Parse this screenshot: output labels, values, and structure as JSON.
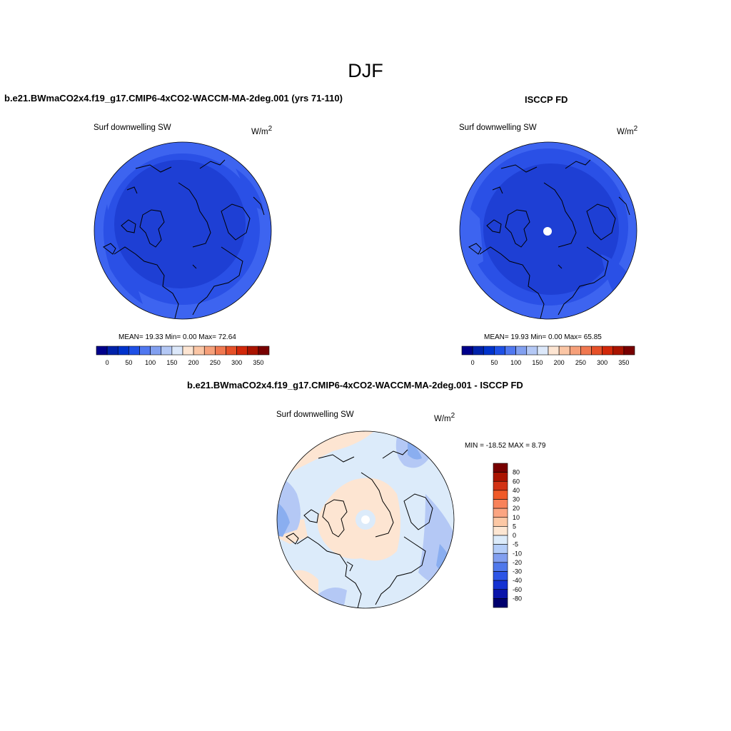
{
  "page_title": "DJF",
  "panels": {
    "model": {
      "title": "b.e21.BWmaCO2x4.f19_g17.CMIP6-4xCO2-WACCM-MA-2deg.001 (yrs 71-110)",
      "variable": "Surf downwelling SW",
      "units_base": "W/m",
      "units_exp": "2",
      "stats": "MEAN=  19.33  Min=    0.00  Max=  72.64"
    },
    "obs": {
      "title": "ISCCP FD",
      "variable": "Surf downwelling SW",
      "units_base": "W/m",
      "units_exp": "2",
      "stats": "MEAN=  19.93  Min=    0.00  Max=  65.85"
    },
    "diff": {
      "title": "b.e21.BWmaCO2x4.f19_g17.CMIP6-4xCO2-WACCM-MA-2deg.001 - ISCCP FD",
      "variable": "Surf downwelling SW",
      "units_base": "W/m",
      "units_exp": "2",
      "stats": "MIN = -18.52 MAX =   8.79"
    }
  },
  "abs_colorbar": {
    "tick_labels": [
      "0",
      "50",
      "100",
      "150",
      "200",
      "250",
      "300",
      "350"
    ],
    "colors": [
      "#00008b",
      "#0022aa",
      "#0033cc",
      "#1e50e6",
      "#5078f0",
      "#82a0f0",
      "#b4c8f5",
      "#dce8fa",
      "#fde5d2",
      "#fbc6a5",
      "#f6a07a",
      "#f07850",
      "#e65028",
      "#d2280a",
      "#aa1400",
      "#780000"
    ]
  },
  "diff_colorbar": {
    "tick_labels": [
      "80",
      "60",
      "40",
      "30",
      "20",
      "10",
      "5",
      "0",
      "-5",
      "-10",
      "-20",
      "-30",
      "-40",
      "-60",
      "-80"
    ],
    "colors": [
      "#780000",
      "#aa1400",
      "#d23214",
      "#f05a28",
      "#f8825a",
      "#fba582",
      "#fcc8a5",
      "#fde6d2",
      "#dcebfa",
      "#b4cdf8",
      "#829ff0",
      "#5078eb",
      "#2d55e6",
      "#1432d2",
      "#0a14aa",
      "#00006e"
    ]
  },
  "map_colors": {
    "abs_dark": "#1e3fd4",
    "abs_mid": "#2a50e6",
    "abs_light": "#3d64f0",
    "diff_pos": "#fde5d2",
    "diff_pos2": "#fbd0b8",
    "diff_neg1": "#dcebfa",
    "diff_neg2": "#b4c8f5",
    "diff_neg3": "#8aaef0",
    "diff_neg4": "#6a90ee"
  }
}
